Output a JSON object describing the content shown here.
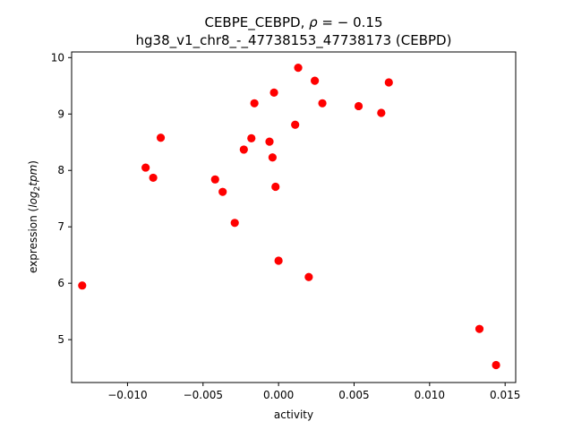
{
  "chart_data": {
    "type": "scatter",
    "title_line1_prefix": "CEBPE_CEBPD, ",
    "title_rho_symbol": "ρ",
    "title_line1_value": " = − 0.15",
    "title_line2": "hg38_v1_chr8_-_47738153_47738173 (CEBPD)",
    "xlabel": "activity",
    "ylabel_prefix": "expression (",
    "ylabel_log": "log",
    "ylabel_sub": "2",
    "ylabel_tpm": "tpm",
    "ylabel_suffix": ")",
    "xlim": [
      -0.0137,
      0.0157
    ],
    "ylim": [
      4.24,
      10.1
    ],
    "x_ticks": [
      -0.01,
      -0.005,
      0.0,
      0.005,
      0.01,
      0.015
    ],
    "x_tick_labels": [
      "−0.010",
      "−0.005",
      "0.000",
      "0.005",
      "0.010",
      "0.015"
    ],
    "y_ticks": [
      5,
      6,
      7,
      8,
      9,
      10
    ],
    "y_tick_labels": [
      "5",
      "6",
      "7",
      "8",
      "9",
      "10"
    ],
    "grid": false,
    "marker_color": "#ff0000",
    "points": [
      {
        "x": -0.013,
        "y": 5.96
      },
      {
        "x": -0.0088,
        "y": 8.05
      },
      {
        "x": -0.0083,
        "y": 7.87
      },
      {
        "x": -0.0078,
        "y": 8.58
      },
      {
        "x": -0.0042,
        "y": 7.84
      },
      {
        "x": -0.0037,
        "y": 7.62
      },
      {
        "x": -0.0029,
        "y": 7.07
      },
      {
        "x": -0.0023,
        "y": 8.37
      },
      {
        "x": -0.0018,
        "y": 8.57
      },
      {
        "x": -0.0016,
        "y": 9.19
      },
      {
        "x": -0.0006,
        "y": 8.51
      },
      {
        "x": -0.0004,
        "y": 8.23
      },
      {
        "x": -0.0003,
        "y": 9.38
      },
      {
        "x": -0.0002,
        "y": 7.71
      },
      {
        "x": 0.0,
        "y": 6.4
      },
      {
        "x": 0.0011,
        "y": 8.81
      },
      {
        "x": 0.0013,
        "y": 9.82
      },
      {
        "x": 0.002,
        "y": 6.11
      },
      {
        "x": 0.0024,
        "y": 9.59
      },
      {
        "x": 0.0029,
        "y": 9.19
      },
      {
        "x": 0.0053,
        "y": 9.14
      },
      {
        "x": 0.0068,
        "y": 9.02
      },
      {
        "x": 0.0073,
        "y": 9.56
      },
      {
        "x": 0.0133,
        "y": 5.19
      },
      {
        "x": 0.0144,
        "y": 4.55
      }
    ]
  }
}
